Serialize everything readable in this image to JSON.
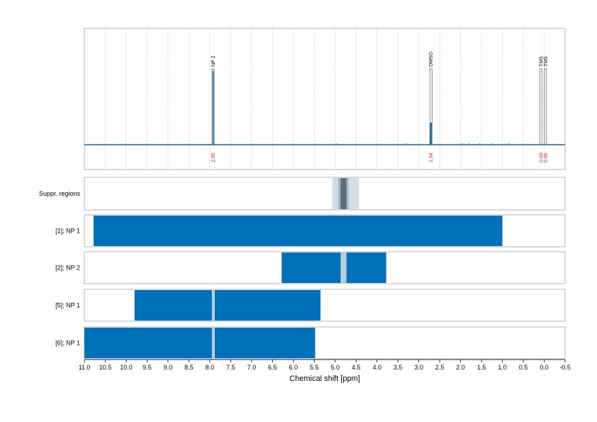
{
  "chart_data": {
    "type": "nmr_spectrum_with_regions",
    "xlabel": "Chemical shift [ppm]",
    "xlim": [
      11.0,
      -0.5
    ],
    "x_ticks": [
      "11.0",
      "10.5",
      "10.0",
      "9.5",
      "9.0",
      "8.5",
      "8.0",
      "7.5",
      "7.0",
      "6.5",
      "6.0",
      "5.5",
      "5.0",
      "4.5",
      "4.0",
      "3.5",
      "3.0",
      "2.5",
      "2.0",
      "1.5",
      "1.0",
      "0.5",
      "0.0",
      "-0.5"
    ],
    "spectrum": {
      "baseline_color": "#0a6aa8",
      "peaks": [
        {
          "label": "NP 2",
          "ppm": 7.92,
          "integral": "2.00"
        },
        {
          "label": "DMSO",
          "ppm": 2.71,
          "integral": "1.54"
        },
        {
          "label": "TMS",
          "ppm": 0.08,
          "integral": "0.00"
        },
        {
          "label": "TMS",
          "ppm": -0.03,
          "integral": "0.00"
        }
      ]
    },
    "suppression": {
      "label": "Suppr. regions",
      "outer": [
        5.07,
        4.43
      ],
      "mid": [
        4.93,
        4.68
      ],
      "inner": [
        4.87,
        4.73
      ]
    },
    "rows": [
      {
        "label": "[1]; NP 1",
        "bars": [
          [
            10.78,
            1.0
          ]
        ],
        "gaps": []
      },
      {
        "label": "[2]; NP 2",
        "bars": [
          [
            6.28,
            3.78
          ]
        ],
        "gaps": [
          [
            4.87,
            4.73
          ]
        ]
      },
      {
        "label": "[5]; NP 1",
        "bars": [
          [
            9.8,
            5.35
          ]
        ],
        "gaps": [
          [
            7.95,
            7.88
          ]
        ]
      },
      {
        "label": "[6]; NP 1",
        "bars": [
          [
            11.0,
            5.48
          ]
        ],
        "gaps": [
          [
            7.95,
            7.88
          ]
        ]
      }
    ],
    "colors": {
      "bar": "#0070bb",
      "gap": "#b9cfde",
      "suppr_outer": "#d3dde6",
      "suppr_mid": "#a7b6c2",
      "suppr_inner": "#5d6e79",
      "grid": "#c8c8c8"
    },
    "grid": true
  }
}
